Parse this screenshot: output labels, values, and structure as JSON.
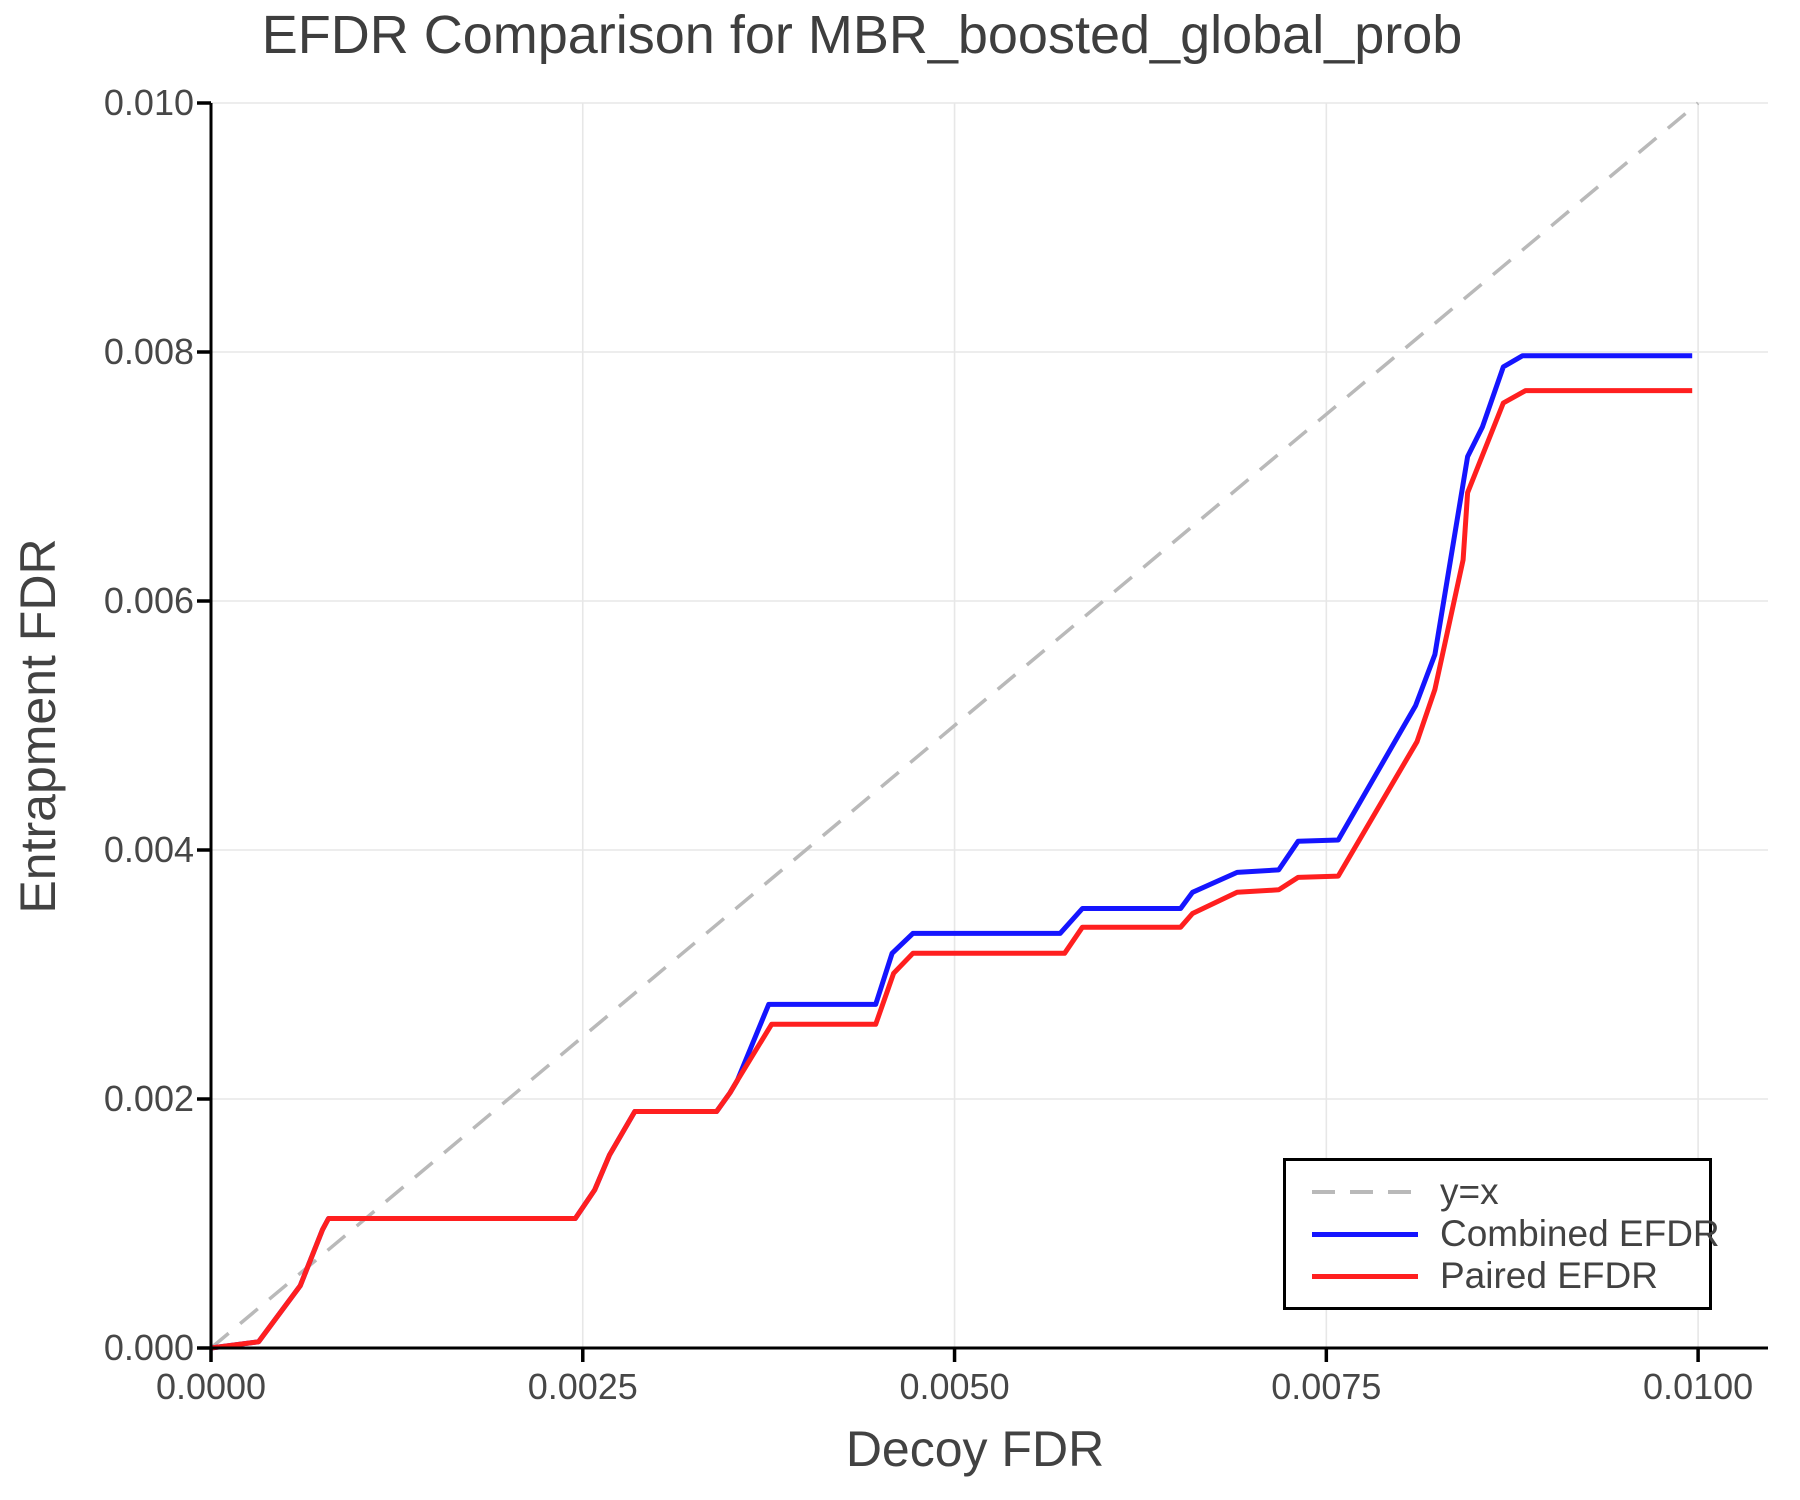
{
  "chart_data": {
    "type": "line",
    "title": "EFDR Comparison for MBR_boosted_global_prob",
    "xlabel": "Decoy FDR",
    "ylabel": "Entrapment FDR",
    "xlim": [
      0,
      0.01047
    ],
    "ylim": [
      0,
      0.01
    ],
    "grid": true,
    "legend_position": "lower right",
    "xticks": [
      {
        "value": 0.0,
        "label": "0.0000"
      },
      {
        "value": 0.0025,
        "label": "0.0025"
      },
      {
        "value": 0.005,
        "label": "0.0050"
      },
      {
        "value": 0.0075,
        "label": "0.0075"
      },
      {
        "value": 0.01,
        "label": "0.0100"
      }
    ],
    "yticks": [
      {
        "value": 0.0,
        "label": "0.000"
      },
      {
        "value": 0.002,
        "label": "0.002"
      },
      {
        "value": 0.004,
        "label": "0.004"
      },
      {
        "value": 0.006,
        "label": "0.006"
      },
      {
        "value": 0.008,
        "label": "0.008"
      },
      {
        "value": 0.01,
        "label": "0.010"
      }
    ],
    "reference_line": {
      "label": "y=x",
      "from": [
        0,
        0
      ],
      "to": [
        0.01,
        0.01
      ],
      "color": "#b9b9b9",
      "dashed": true
    },
    "series": [
      {
        "name": "Combined EFDR",
        "color": "#1515ff",
        "points": [
          [
            0.0,
            0.0
          ],
          [
            0.00032,
            5e-05
          ],
          [
            0.0006,
            0.0005
          ],
          [
            0.00075,
            0.00095
          ],
          [
            0.00079,
            0.00104
          ],
          [
            0.00245,
            0.00104
          ],
          [
            0.00258,
            0.00127
          ],
          [
            0.00268,
            0.00155
          ],
          [
            0.00285,
            0.0019
          ],
          [
            0.0034,
            0.0019
          ],
          [
            0.00349,
            0.00205
          ],
          [
            0.00354,
            0.00215
          ],
          [
            0.00375,
            0.00276
          ],
          [
            0.00447,
            0.00276
          ],
          [
            0.00458,
            0.00317
          ],
          [
            0.00472,
            0.00333
          ],
          [
            0.00571,
            0.00333
          ],
          [
            0.00586,
            0.00353
          ],
          [
            0.00652,
            0.00353
          ],
          [
            0.0066,
            0.00366
          ],
          [
            0.0069,
            0.00382
          ],
          [
            0.00718,
            0.00384
          ],
          [
            0.00731,
            0.00407
          ],
          [
            0.00758,
            0.00408
          ],
          [
            0.0081,
            0.00516
          ],
          [
            0.00823,
            0.00557
          ],
          [
            0.00845,
            0.00716
          ],
          [
            0.00855,
            0.0074
          ],
          [
            0.00869,
            0.00788
          ],
          [
            0.00882,
            0.00797
          ],
          [
            0.00996,
            0.00797
          ]
        ]
      },
      {
        "name": "Paired EFDR",
        "color": "#ff1f1f",
        "points": [
          [
            0.0,
            0.0
          ],
          [
            0.00032,
            5e-05
          ],
          [
            0.0006,
            0.0005
          ],
          [
            0.00075,
            0.00095
          ],
          [
            0.00079,
            0.00104
          ],
          [
            0.00245,
            0.00104
          ],
          [
            0.00258,
            0.00127
          ],
          [
            0.00268,
            0.00155
          ],
          [
            0.00285,
            0.0019
          ],
          [
            0.0034,
            0.0019
          ],
          [
            0.00349,
            0.00205
          ],
          [
            0.00354,
            0.00215
          ],
          [
            0.00377,
            0.0026
          ],
          [
            0.00447,
            0.0026
          ],
          [
            0.00459,
            0.00301
          ],
          [
            0.00472,
            0.00317
          ],
          [
            0.00574,
            0.00317
          ],
          [
            0.00586,
            0.00338
          ],
          [
            0.00652,
            0.00338
          ],
          [
            0.0066,
            0.00349
          ],
          [
            0.0069,
            0.00366
          ],
          [
            0.00718,
            0.00368
          ],
          [
            0.00731,
            0.00378
          ],
          [
            0.00758,
            0.00379
          ],
          [
            0.00811,
            0.00487
          ],
          [
            0.00823,
            0.00529
          ],
          [
            0.00842,
            0.00633
          ],
          [
            0.00845,
            0.00687
          ],
          [
            0.00869,
            0.00759
          ],
          [
            0.00884,
            0.00769
          ],
          [
            0.00996,
            0.00769
          ]
        ]
      }
    ]
  },
  "colors": {
    "gridline": "#e7e7e7",
    "spine": "#000000",
    "tick_label_text": "#474747",
    "axis_label_text": "#424242",
    "title_text": "#3e3e3e",
    "legend_border": "#000000",
    "legend_background": "#ffffff"
  }
}
